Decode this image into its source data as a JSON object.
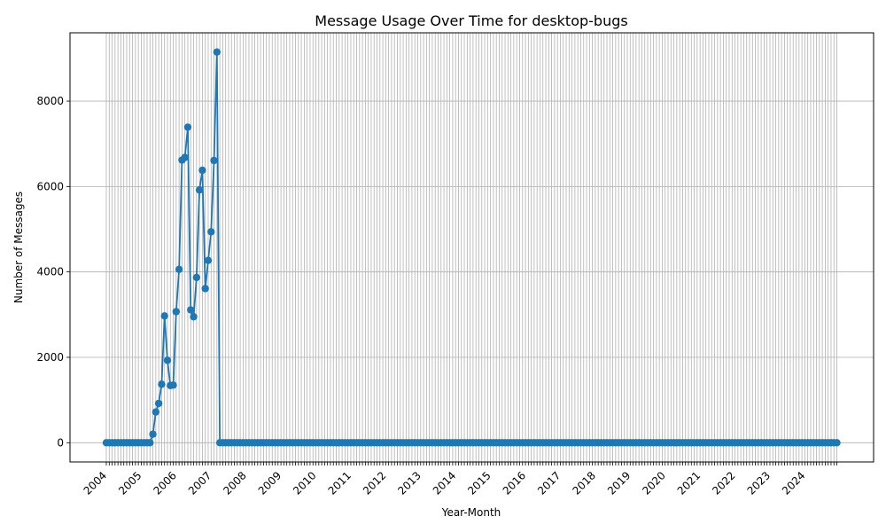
{
  "chart_data": {
    "type": "line",
    "title": "Message Usage Over Time for desktop-bugs",
    "xlabel": "Year-Month",
    "ylabel": "Number of Messages",
    "start": "2004-01",
    "end": "2024-12",
    "ylim": [
      -450,
      9600
    ],
    "yticks": [
      0,
      2000,
      4000,
      6000,
      8000
    ],
    "xtick_labels": [
      "2004",
      "2005",
      "2006",
      "2007",
      "2008",
      "2009",
      "2010",
      "2011",
      "2012",
      "2013",
      "2014",
      "2015",
      "2016",
      "2017",
      "2018",
      "2019",
      "2020",
      "2021",
      "2022",
      "2023",
      "2024"
    ],
    "grid": true,
    "color": "#1f77b4",
    "nonzero": {
      "2005-05": 200,
      "2005-06": 720,
      "2005-07": 920,
      "2005-08": 1370,
      "2005-09": 2970,
      "2005-10": 1930,
      "2005-11": 1340,
      "2005-12": 1350,
      "2006-01": 3070,
      "2006-02": 4060,
      "2006-03": 6620,
      "2006-04": 6680,
      "2006-05": 7390,
      "2006-06": 3110,
      "2006-07": 2950,
      "2006-08": 3870,
      "2006-09": 5920,
      "2006-10": 6380,
      "2006-11": 3610,
      "2006-12": 4270,
      "2007-01": 4940,
      "2007-02": 6610,
      "2007-03": 9150
    }
  }
}
